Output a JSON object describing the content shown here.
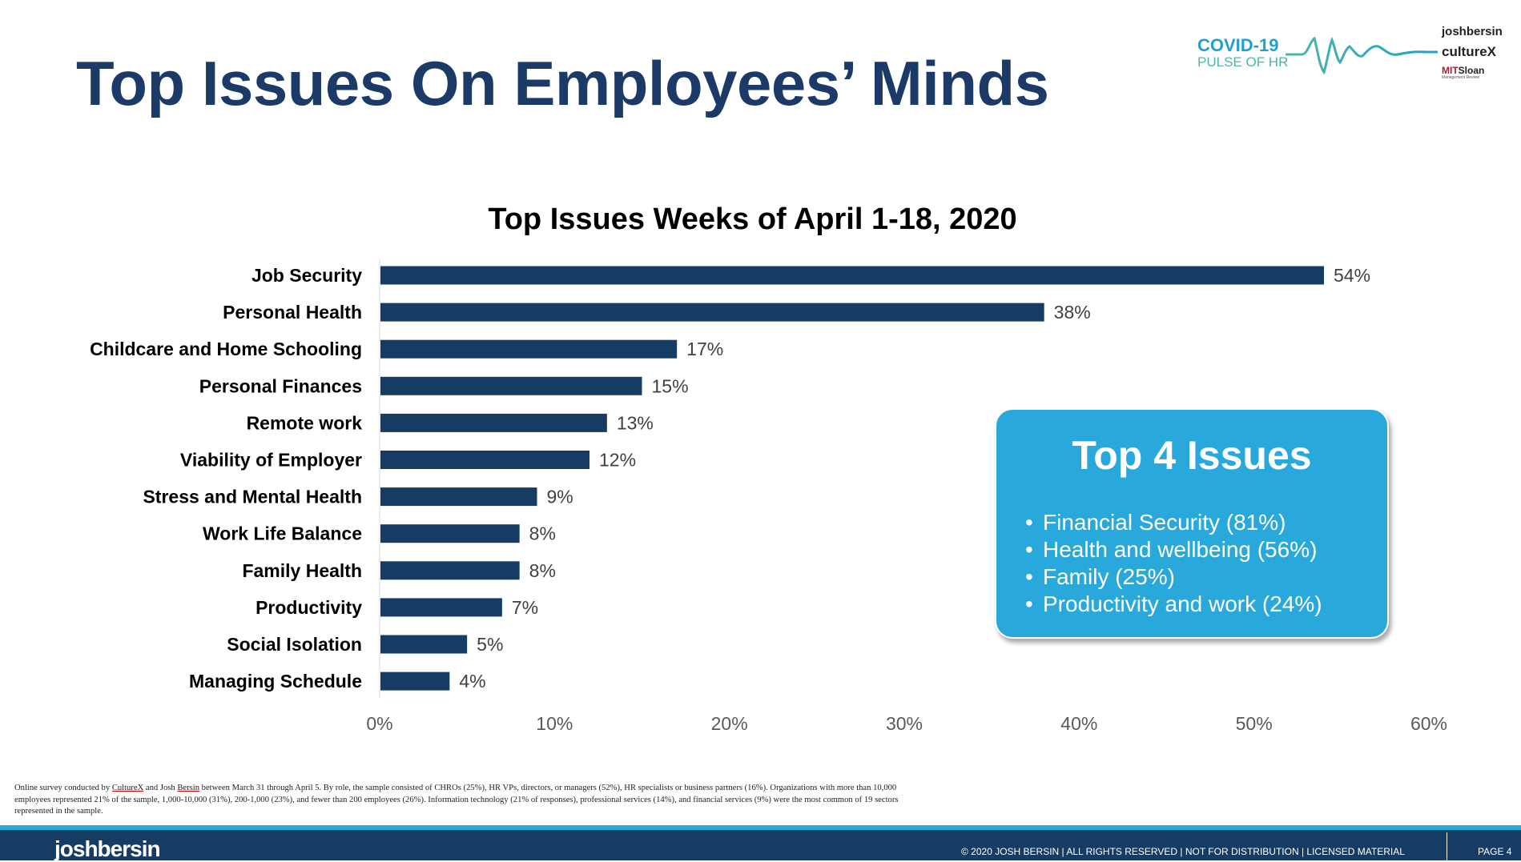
{
  "header": {
    "title": "Top Issues On Employees’ Minds",
    "logo_covid_line1": "COVID-19",
    "logo_covid_line2": "PULSE OF HR",
    "logo_brand1": "joshbersin",
    "logo_brand2": "cultureX",
    "logo_brand3_a": "MIT",
    "logo_brand3_b": "Sloan",
    "logo_brand3_sub": "Management Review"
  },
  "chart_data": {
    "type": "bar",
    "orientation": "horizontal",
    "title": "Top Issues Weeks of April 1-18, 2020",
    "categories": [
      "Job Security",
      "Personal Health",
      "Childcare and Home Schooling",
      "Personal Finances",
      "Remote work",
      "Viability of Employer",
      "Stress and Mental Health",
      "Work Life Balance",
      "Family Health",
      "Productivity",
      "Social Isolation",
      "Managing Schedule"
    ],
    "values": [
      54,
      38,
      17,
      15,
      13,
      12,
      9,
      8,
      8,
      7,
      5,
      4
    ],
    "value_labels": [
      "54%",
      "38%",
      "17%",
      "15%",
      "13%",
      "12%",
      "9%",
      "8%",
      "8%",
      "7%",
      "5%",
      "4%"
    ],
    "xlim": [
      0,
      60
    ],
    "x_ticks": [
      0,
      10,
      20,
      30,
      40,
      50,
      60
    ],
    "x_tick_labels": [
      "0%",
      "10%",
      "20%",
      "30%",
      "40%",
      "50%",
      "60%"
    ],
    "xlabel": "",
    "ylabel": "",
    "grid": false,
    "bar_color": "#173c64"
  },
  "callout": {
    "title": "Top 4 Issues",
    "items": [
      "Financial Security (81%)",
      "Health and wellbeing (56%)",
      "Family (25%)",
      "Productivity and work (24%)"
    ],
    "bullet": "•",
    "color": "#29a8dc"
  },
  "footnote": {
    "p1": "Online survey conducted by ",
    "culturex": "CultureX",
    "p2": " and Josh ",
    "bersin": "Bersin",
    "p3": " between March 31 through April 5.  By role, the sample consisted of CHROs (25%), HR VPs, directors, or managers (52%), HR specialists or business partners (16%). Organizations with more than 10,000 employees represented 21% of the sample, 1,000-10,000 (31%), 200-1,000 (23%), and fewer than 200 employees (26%). Information technology (21% of responses), professional services (14%), and financial services (9%) were the most common of 19 sectors represented in the sample."
  },
  "footer": {
    "logo": "joshbersin",
    "copyright": "© 2020 JOSH BERSIN | ALL RIGHTS RESERVED | NOT FOR DISTRIBUTION | LICENSED MATERIAL",
    "page": "PAGE  4"
  }
}
